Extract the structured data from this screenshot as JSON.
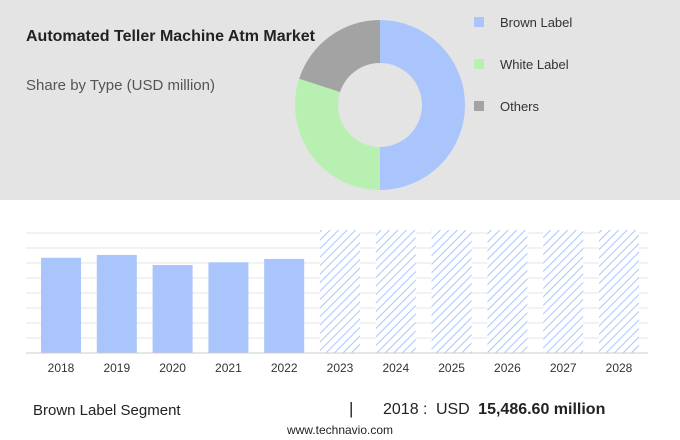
{
  "header": {
    "title": "Automated Teller Machine Atm Market",
    "subtitle": "Share by Type (USD million)"
  },
  "colors": {
    "brown_label": "#a9c5fc",
    "white_label": "#b7f0b1",
    "others": "#a3a3a3",
    "hatch": "#a9c5fc"
  },
  "chart_data": [
    {
      "type": "pie",
      "donut": true,
      "title": "Share by Type (USD million)",
      "categories": [
        "Brown Label",
        "White Label",
        "Others"
      ],
      "values": [
        50,
        30,
        20
      ],
      "legend": [
        "Brown Label",
        "White Label",
        "Others"
      ],
      "legend_position": "right"
    },
    {
      "type": "bar",
      "categories": [
        "2018",
        "2019",
        "2020",
        "2021",
        "2022",
        "2023",
        "2024",
        "2025",
        "2026",
        "2027",
        "2028"
      ],
      "values": [
        15486.6,
        15950,
        14300,
        14750,
        15300,
        null,
        null,
        null,
        null,
        null,
        null
      ],
      "forecast_categories": [
        "2023",
        "2024",
        "2025",
        "2026",
        "2027",
        "2028"
      ],
      "ylim": [
        0,
        20000
      ],
      "grid": true,
      "series_name": "Brown Label Segment"
    }
  ],
  "footer": {
    "segment_label": "Brown Label Segment",
    "separator": "|",
    "year_label": "2018 :",
    "currency": "USD",
    "value": "15,486.60 million",
    "website": "www.technavio.com"
  }
}
